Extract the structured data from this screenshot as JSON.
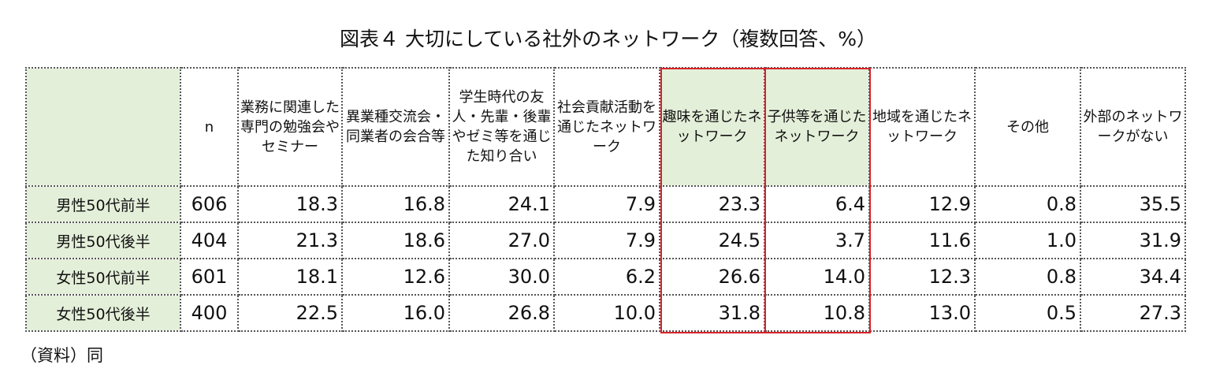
{
  "title": "図表４ 大切にしている社外のネットワーク（複数回答、%）",
  "table": {
    "headers": [
      "",
      "n",
      "業務に関連した専門の勉強会やセミナー",
      "異業種交流会・同業者の会合等",
      "学生時代の友人・先輩・後輩やゼミ等を通じた知り合い",
      "社会貢献活動を通じたネットワーク",
      "趣味を通じたネットワーク",
      "子供等を通じたネットワーク",
      "地域を通じたネットワーク",
      "その他",
      "外部のネットワークがない"
    ],
    "rows": [
      {
        "label": "男性50代前半",
        "n": "606",
        "values": [
          "18.3",
          "16.8",
          "24.1",
          "7.9",
          "23.3",
          "6.4",
          "12.9",
          "0.8",
          "35.5"
        ]
      },
      {
        "label": "男性50代後半",
        "n": "404",
        "values": [
          "21.3",
          "18.6",
          "27.0",
          "7.9",
          "24.5",
          "3.7",
          "11.6",
          "1.0",
          "31.9"
        ]
      },
      {
        "label": "女性50代前半",
        "n": "601",
        "values": [
          "18.1",
          "12.6",
          "30.0",
          "6.2",
          "26.6",
          "14.0",
          "12.3",
          "0.8",
          "34.4"
        ]
      },
      {
        "label": "女性50代後半",
        "n": "400",
        "values": [
          "22.5",
          "16.0",
          "26.8",
          "10.0",
          "31.8",
          "10.8",
          "13.0",
          "0.5",
          "27.3"
        ]
      }
    ]
  },
  "source": "（資料）同",
  "colors": {
    "header_fill": "#e4efd9",
    "highlight_border": "#d9232a"
  }
}
